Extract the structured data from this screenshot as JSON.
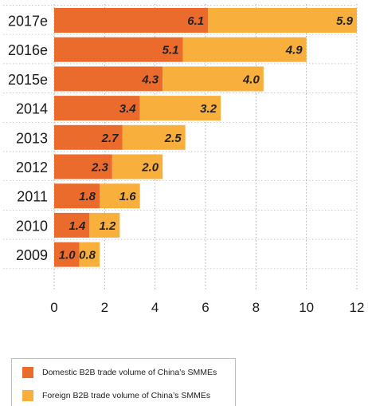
{
  "chart_data": {
    "type": "bar",
    "orientation": "horizontal",
    "stacked": true,
    "categories": [
      "2017e",
      "2016e",
      "2015e",
      "2014",
      "2013",
      "2012",
      "2011",
      "2010",
      "2009"
    ],
    "series": [
      {
        "name": "Domestic B2B trade volume of China's SMMEs",
        "color": "#EB6B2D",
        "values": [
          6.1,
          5.1,
          4.3,
          3.4,
          2.7,
          2.3,
          1.8,
          1.4,
          1.0
        ],
        "labels": [
          "6.1",
          "5.1",
          "4.3",
          "3.4",
          "2.7",
          "2.3",
          "1.8",
          "1.4",
          "1.0"
        ]
      },
      {
        "name": "Foreign B2B trade volume of China's SMMEs",
        "color": "#F8AF3C",
        "values": [
          5.9,
          4.9,
          4.0,
          3.2,
          2.5,
          2.0,
          1.6,
          1.2,
          0.8
        ],
        "labels": [
          "5.9",
          "4.9",
          "4.0",
          "3.2",
          "2.5",
          "2.0",
          "1.6",
          "1.2",
          "0.8"
        ]
      }
    ],
    "xlim": [
      0,
      12
    ],
    "xticks": [
      0,
      2,
      4,
      6,
      8,
      10,
      12
    ],
    "xtick_labels": [
      "0",
      "2",
      "4",
      "6",
      "8",
      "10",
      "12"
    ],
    "grid": "vertical dotted",
    "legend_position": "bottom"
  },
  "legend": {
    "domestic_label": "Domestic B2B trade volume of China’s SMMEs",
    "foreign_label": "Foreign B2B trade volume of China’s SMMEs"
  }
}
